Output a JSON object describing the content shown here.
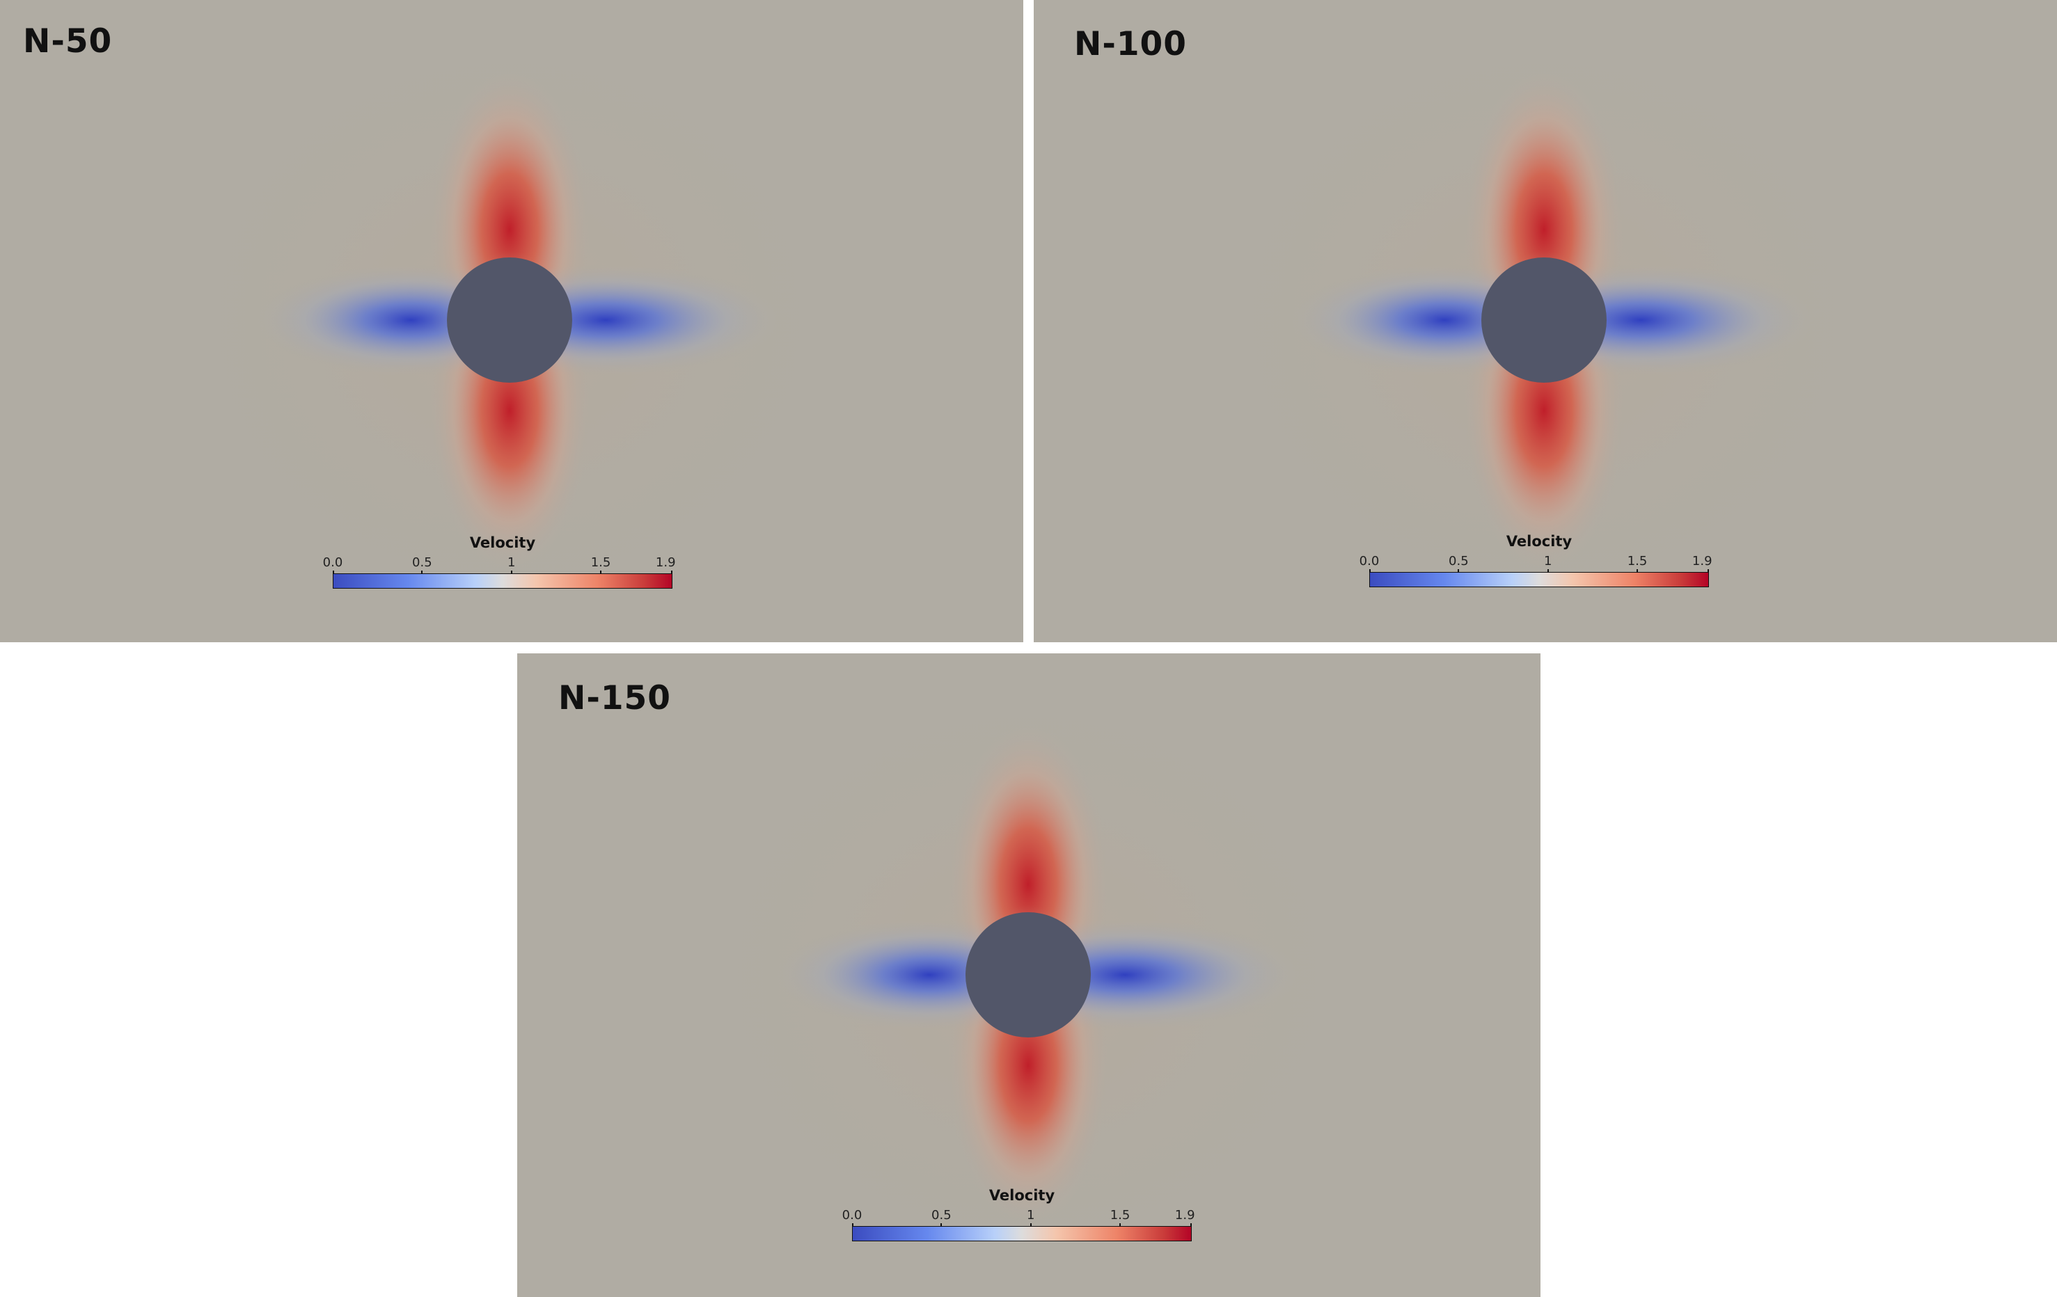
{
  "colors": {
    "background_field": "#b0aca3",
    "cylinder": "#525669",
    "low_velocity": "#3b4cc0",
    "high_velocity": "#b40426",
    "page_background": "#ffffff"
  },
  "panels": [
    {
      "label": "N-50",
      "colorbar": {
        "title": "Velocity",
        "ticks": [
          "0.0",
          "0.5",
          "1",
          "1.5",
          "1.9"
        ],
        "range": [
          0.0,
          1.9
        ]
      }
    },
    {
      "label": "N-100",
      "colorbar": {
        "title": "Velocity",
        "ticks": [
          "0.0",
          "0.5",
          "1",
          "1.5",
          "1.9"
        ],
        "range": [
          0.0,
          1.9
        ]
      }
    },
    {
      "label": "N-150",
      "colorbar": {
        "title": "Velocity",
        "ticks": [
          "0.0",
          "0.5",
          "1",
          "1.5",
          "1.9"
        ],
        "range": [
          0.0,
          1.9
        ]
      }
    }
  ]
}
